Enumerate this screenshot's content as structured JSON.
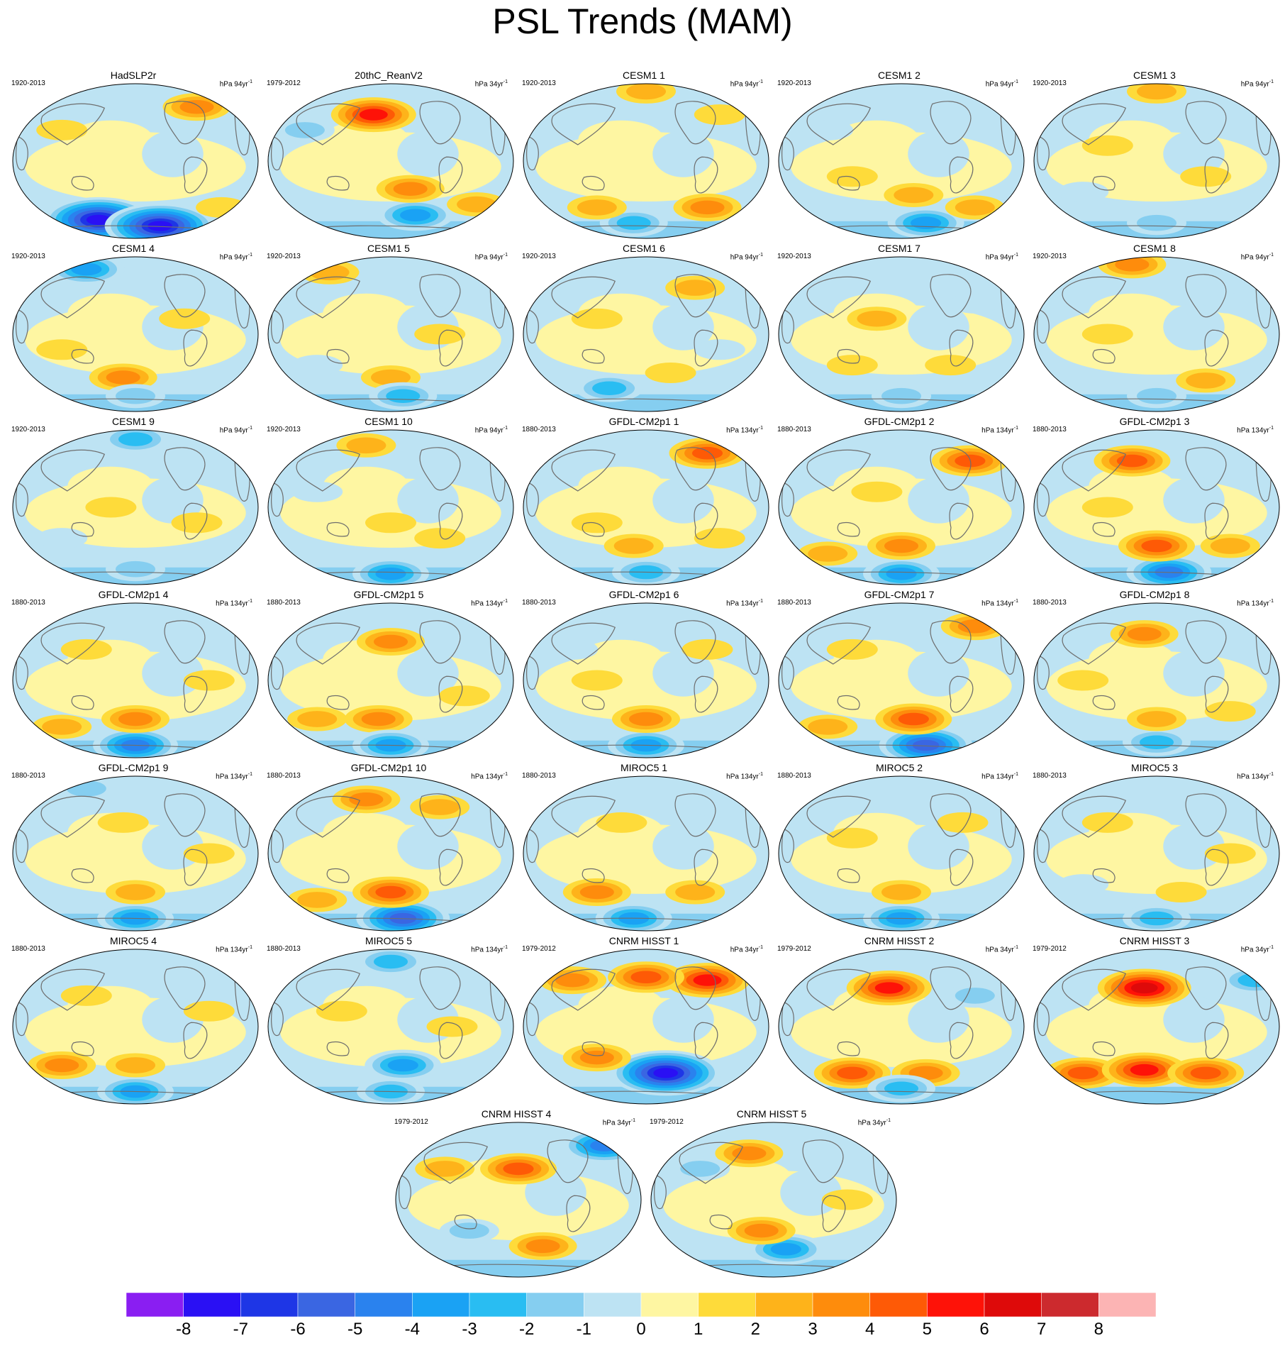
{
  "title": "PSL Trends (MAM)",
  "colors": {
    "palette": [
      "#8a1ef2",
      "#2a10f4",
      "#1e36e6",
      "#3a66e2",
      "#2a82ee",
      "#1aa2f4",
      "#29bdf2",
      "#85cef0",
      "#bde3f3",
      "#fef6a2",
      "#fedb3a",
      "#feb31a",
      "#fe8c0c",
      "#fe5a06",
      "#fe1208",
      "#de0a0a",
      "#cc2a2e",
      "#fcb4b4"
    ],
    "coastline": "#6e6e6e",
    "ocean_base": "#bde3f3"
  },
  "chart_data": {
    "type": "heatmap",
    "title": "PSL Trends (MAM)",
    "colorbar": {
      "levels": [
        "-8",
        "-7",
        "-6",
        "-5",
        "-4",
        "-3",
        "-2",
        "-1",
        "0",
        "1",
        "2",
        "3",
        "4",
        "5",
        "6",
        "7",
        "8"
      ]
    },
    "panels": [
      {
        "name": "HadSLP2r",
        "period": "1920-2013",
        "unit": "hPa 94yr",
        "features": [
          [
            0.35,
            0.88,
            -8
          ],
          [
            0.6,
            0.92,
            -8
          ],
          [
            0.75,
            0.15,
            3
          ],
          [
            0.2,
            0.3,
            1
          ],
          [
            0.85,
            0.8,
            1
          ]
        ]
      },
      {
        "name": "20thC_ReanV2",
        "period": "1979-2012",
        "unit": "hPa 34yr",
        "features": [
          [
            0.43,
            0.2,
            5
          ],
          [
            0.6,
            0.85,
            -4
          ],
          [
            0.58,
            0.68,
            3
          ],
          [
            0.85,
            0.78,
            2
          ],
          [
            0.15,
            0.3,
            -2
          ]
        ]
      },
      {
        "name": "CESM1 1",
        "period": "1920-2013",
        "unit": "hPa 94yr",
        "features": [
          [
            0.5,
            0.05,
            2
          ],
          [
            0.75,
            0.8,
            3
          ],
          [
            0.45,
            0.9,
            -3
          ],
          [
            0.3,
            0.8,
            2
          ],
          [
            0.8,
            0.2,
            1
          ]
        ]
      },
      {
        "name": "CESM1 2",
        "period": "1920-2013",
        "unit": "hPa 94yr",
        "features": [
          [
            0.6,
            0.9,
            -4
          ],
          [
            0.55,
            0.72,
            2
          ],
          [
            0.8,
            0.8,
            2
          ],
          [
            0.3,
            0.6,
            1
          ],
          [
            0.2,
            0.3,
            -1
          ]
        ]
      },
      {
        "name": "CESM1 3",
        "period": "1920-2013",
        "unit": "hPa 94yr",
        "features": [
          [
            0.5,
            0.05,
            2
          ],
          [
            0.3,
            0.4,
            1
          ],
          [
            0.7,
            0.6,
            1
          ],
          [
            0.5,
            0.9,
            -2
          ],
          [
            0.2,
            0.7,
            -1
          ]
        ]
      },
      {
        "name": "CESM1 4",
        "period": "1920-2013",
        "unit": "hPa 94yr",
        "features": [
          [
            0.3,
            0.08,
            -4
          ],
          [
            0.45,
            0.78,
            3
          ],
          [
            0.5,
            0.9,
            -2
          ],
          [
            0.7,
            0.4,
            1
          ],
          [
            0.2,
            0.6,
            1
          ]
        ]
      },
      {
        "name": "CESM1 5",
        "period": "1920-2013",
        "unit": "hPa 94yr",
        "features": [
          [
            0.25,
            0.1,
            2
          ],
          [
            0.5,
            0.78,
            2
          ],
          [
            0.55,
            0.9,
            -3
          ],
          [
            0.7,
            0.5,
            1
          ],
          [
            0.2,
            0.7,
            -1
          ]
        ]
      },
      {
        "name": "CESM1 6",
        "period": "1920-2013",
        "unit": "hPa 94yr",
        "features": [
          [
            0.35,
            0.85,
            -3
          ],
          [
            0.7,
            0.2,
            2
          ],
          [
            0.6,
            0.75,
            1
          ],
          [
            0.3,
            0.4,
            1
          ],
          [
            0.8,
            0.6,
            -1
          ]
        ]
      },
      {
        "name": "CESM1 7",
        "period": "1920-2013",
        "unit": "hPa 94yr",
        "features": [
          [
            0.4,
            0.4,
            2
          ],
          [
            0.5,
            0.9,
            -2
          ],
          [
            0.7,
            0.7,
            1
          ],
          [
            0.3,
            0.7,
            1
          ],
          [
            0.8,
            0.3,
            -1
          ]
        ]
      },
      {
        "name": "CESM1 8",
        "period": "1920-2013",
        "unit": "hPa 94yr",
        "features": [
          [
            0.4,
            0.05,
            3
          ],
          [
            0.7,
            0.8,
            2
          ],
          [
            0.5,
            0.9,
            -2
          ],
          [
            0.3,
            0.5,
            1
          ],
          [
            0.8,
            0.3,
            -1
          ]
        ]
      },
      {
        "name": "CESM1 9",
        "period": "1920-2013",
        "unit": "hPa 94yr",
        "features": [
          [
            0.5,
            0.06,
            -3
          ],
          [
            0.5,
            0.9,
            -2
          ],
          [
            0.4,
            0.5,
            1
          ],
          [
            0.75,
            0.6,
            1
          ],
          [
            0.2,
            0.7,
            -1
          ]
        ]
      },
      {
        "name": "CESM1 10",
        "period": "1920-2013",
        "unit": "hPa 94yr",
        "features": [
          [
            0.5,
            0.93,
            -4
          ],
          [
            0.4,
            0.1,
            2
          ],
          [
            0.5,
            0.6,
            1
          ],
          [
            0.7,
            0.7,
            1
          ],
          [
            0.2,
            0.4,
            -1
          ]
        ]
      },
      {
        "name": "GFDL-CM2p1 1",
        "period": "1880-2013",
        "unit": "hPa 134yr",
        "features": [
          [
            0.75,
            0.15,
            4
          ],
          [
            0.5,
            0.92,
            -3
          ],
          [
            0.45,
            0.75,
            2
          ],
          [
            0.3,
            0.6,
            1
          ],
          [
            0.8,
            0.7,
            1
          ]
        ]
      },
      {
        "name": "GFDL-CM2p1 2",
        "period": "1880-2013",
        "unit": "hPa 134yr",
        "features": [
          [
            0.78,
            0.2,
            4
          ],
          [
            0.5,
            0.93,
            -4
          ],
          [
            0.5,
            0.75,
            3
          ],
          [
            0.2,
            0.8,
            2
          ],
          [
            0.4,
            0.4,
            1
          ]
        ]
      },
      {
        "name": "GFDL-CM2p1 3",
        "period": "1880-2013",
        "unit": "hPa 134yr",
        "features": [
          [
            0.4,
            0.2,
            4
          ],
          [
            0.55,
            0.92,
            -5
          ],
          [
            0.5,
            0.75,
            4
          ],
          [
            0.8,
            0.75,
            2
          ],
          [
            0.3,
            0.5,
            1
          ]
        ]
      },
      {
        "name": "GFDL-CM2p1 4",
        "period": "1880-2013",
        "unit": "hPa 134yr",
        "features": [
          [
            0.5,
            0.92,
            -5
          ],
          [
            0.5,
            0.75,
            3
          ],
          [
            0.2,
            0.8,
            2
          ],
          [
            0.3,
            0.3,
            1
          ],
          [
            0.8,
            0.5,
            1
          ]
        ]
      },
      {
        "name": "GFDL-CM2p1 5",
        "period": "1880-2013",
        "unit": "hPa 134yr",
        "features": [
          [
            0.5,
            0.25,
            3
          ],
          [
            0.45,
            0.75,
            3
          ],
          [
            0.5,
            0.92,
            -4
          ],
          [
            0.2,
            0.75,
            2
          ],
          [
            0.8,
            0.6,
            1
          ]
        ]
      },
      {
        "name": "GFDL-CM2p1 6",
        "period": "1880-2013",
        "unit": "hPa 134yr",
        "features": [
          [
            0.5,
            0.92,
            -4
          ],
          [
            0.5,
            0.75,
            3
          ],
          [
            0.3,
            0.5,
            1
          ],
          [
            0.75,
            0.3,
            1
          ],
          [
            0.2,
            0.3,
            -1
          ]
        ]
      },
      {
        "name": "GFDL-CM2p1 7",
        "period": "1880-2013",
        "unit": "hPa 134yr",
        "features": [
          [
            0.6,
            0.92,
            -6
          ],
          [
            0.55,
            0.75,
            4
          ],
          [
            0.8,
            0.15,
            3
          ],
          [
            0.3,
            0.3,
            1
          ],
          [
            0.2,
            0.8,
            2
          ]
        ]
      },
      {
        "name": "GFDL-CM2p1 8",
        "period": "1880-2013",
        "unit": "hPa 134yr",
        "features": [
          [
            0.45,
            0.2,
            3
          ],
          [
            0.5,
            0.9,
            -3
          ],
          [
            0.5,
            0.75,
            2
          ],
          [
            0.8,
            0.7,
            1
          ],
          [
            0.2,
            0.5,
            1
          ]
        ]
      },
      {
        "name": "GFDL-CM2p1 9",
        "period": "1880-2013",
        "unit": "hPa 134yr",
        "features": [
          [
            0.5,
            0.92,
            -4
          ],
          [
            0.5,
            0.75,
            2
          ],
          [
            0.3,
            0.08,
            -2
          ],
          [
            0.45,
            0.3,
            1
          ],
          [
            0.8,
            0.5,
            1
          ]
        ]
      },
      {
        "name": "GFDL-CM2p1 10",
        "period": "1880-2013",
        "unit": "hPa 134yr",
        "features": [
          [
            0.55,
            0.92,
            -6
          ],
          [
            0.5,
            0.75,
            4
          ],
          [
            0.4,
            0.15,
            3
          ],
          [
            0.7,
            0.2,
            2
          ],
          [
            0.2,
            0.8,
            2
          ]
        ]
      },
      {
        "name": "MIROC5 1",
        "period": "1880-2013",
        "unit": "hPa 134yr",
        "features": [
          [
            0.45,
            0.92,
            -4
          ],
          [
            0.3,
            0.75,
            3
          ],
          [
            0.7,
            0.75,
            2
          ],
          [
            0.4,
            0.3,
            1
          ],
          [
            0.8,
            0.2,
            -1
          ]
        ]
      },
      {
        "name": "MIROC5 2",
        "period": "1880-2013",
        "unit": "hPa 134yr",
        "features": [
          [
            0.5,
            0.92,
            -4
          ],
          [
            0.5,
            0.75,
            2
          ],
          [
            0.3,
            0.4,
            1
          ],
          [
            0.75,
            0.3,
            1
          ],
          [
            0.2,
            0.2,
            -1
          ]
        ]
      },
      {
        "name": "MIROC5 3",
        "period": "1880-2013",
        "unit": "hPa 134yr",
        "features": [
          [
            0.5,
            0.92,
            -3
          ],
          [
            0.6,
            0.75,
            1
          ],
          [
            0.3,
            0.3,
            1
          ],
          [
            0.8,
            0.5,
            1
          ],
          [
            0.2,
            0.7,
            -1
          ]
        ]
      },
      {
        "name": "MIROC5 4",
        "period": "1880-2013",
        "unit": "hPa 134yr",
        "features": [
          [
            0.5,
            0.92,
            -4
          ],
          [
            0.2,
            0.75,
            3
          ],
          [
            0.5,
            0.75,
            2
          ],
          [
            0.8,
            0.4,
            1
          ],
          [
            0.3,
            0.3,
            1
          ]
        ]
      },
      {
        "name": "MIROC5 5",
        "period": "1880-2013",
        "unit": "hPa 134yr",
        "features": [
          [
            0.5,
            0.08,
            -3
          ],
          [
            0.55,
            0.75,
            -4
          ],
          [
            0.5,
            0.92,
            -3
          ],
          [
            0.3,
            0.4,
            1
          ],
          [
            0.75,
            0.5,
            1
          ]
        ]
      },
      {
        "name": "CNRM HISST 1",
        "period": "1979-2012",
        "unit": "hPa 34yr",
        "features": [
          [
            0.58,
            0.8,
            -8
          ],
          [
            0.75,
            0.2,
            5
          ],
          [
            0.5,
            0.18,
            4
          ],
          [
            0.2,
            0.2,
            3
          ],
          [
            0.3,
            0.7,
            3
          ]
        ]
      },
      {
        "name": "CNRM HISST 2",
        "period": "1979-2012",
        "unit": "hPa 34yr",
        "features": [
          [
            0.45,
            0.25,
            5
          ],
          [
            0.3,
            0.8,
            4
          ],
          [
            0.6,
            0.8,
            3
          ],
          [
            0.5,
            0.9,
            -3
          ],
          [
            0.8,
            0.3,
            -2
          ]
        ]
      },
      {
        "name": "CNRM HISST 3",
        "period": "1979-2012",
        "unit": "hPa 34yr",
        "features": [
          [
            0.45,
            0.25,
            6
          ],
          [
            0.2,
            0.8,
            4
          ],
          [
            0.45,
            0.78,
            5
          ],
          [
            0.7,
            0.8,
            4
          ],
          [
            0.9,
            0.2,
            -3
          ]
        ]
      },
      {
        "name": "CNRM HISST 4",
        "period": "1979-2012",
        "unit": "hPa 34yr",
        "features": [
          [
            0.5,
            0.3,
            4
          ],
          [
            0.85,
            0.15,
            -5
          ],
          [
            0.6,
            0.8,
            3
          ],
          [
            0.3,
            0.7,
            -2
          ],
          [
            0.2,
            0.3,
            2
          ]
        ]
      },
      {
        "name": "CNRM HISST 5",
        "period": "1979-2012",
        "unit": "hPa 34yr",
        "features": [
          [
            0.55,
            0.82,
            -4
          ],
          [
            0.45,
            0.7,
            3
          ],
          [
            0.4,
            0.2,
            3
          ],
          [
            0.2,
            0.3,
            -2
          ],
          [
            0.8,
            0.5,
            1
          ]
        ]
      }
    ]
  }
}
